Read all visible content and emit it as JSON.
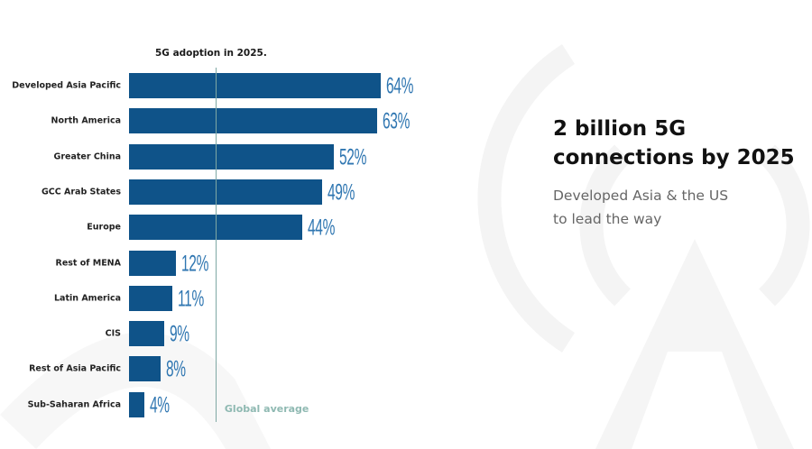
{
  "headline": {
    "line1": "2 billion 5G",
    "line2": "connections by 2025"
  },
  "subheadline": {
    "line1": "Developed Asia & the US",
    "line2": "to lead the way"
  },
  "watermark_icon": "signal-tower-icon",
  "colors": {
    "bar": "#0f5389",
    "value_label": "#2f76b1",
    "global_average": "#7fa8a4"
  },
  "chart_data": {
    "type": "bar",
    "orientation": "horizontal",
    "title": "5G adoption in 2025.",
    "categories": [
      "Developed Asia Pacific",
      "North America",
      "Greater China",
      "GCC Arab States",
      "Europe",
      "Rest of MENA",
      "Latin America",
      "CIS",
      "Rest of Asia Pacific",
      "Sub-Saharan Africa"
    ],
    "values": [
      64,
      63,
      52,
      49,
      44,
      12,
      11,
      9,
      8,
      4
    ],
    "labels": [
      "64%",
      "63%",
      "52%",
      "49%",
      "44%",
      "12%",
      "11%",
      "9%",
      "8%",
      "4%"
    ],
    "unit": "%",
    "xlim": [
      0,
      64
    ],
    "reference_line": {
      "label": "Global average",
      "value": 22
    },
    "grid": false
  }
}
